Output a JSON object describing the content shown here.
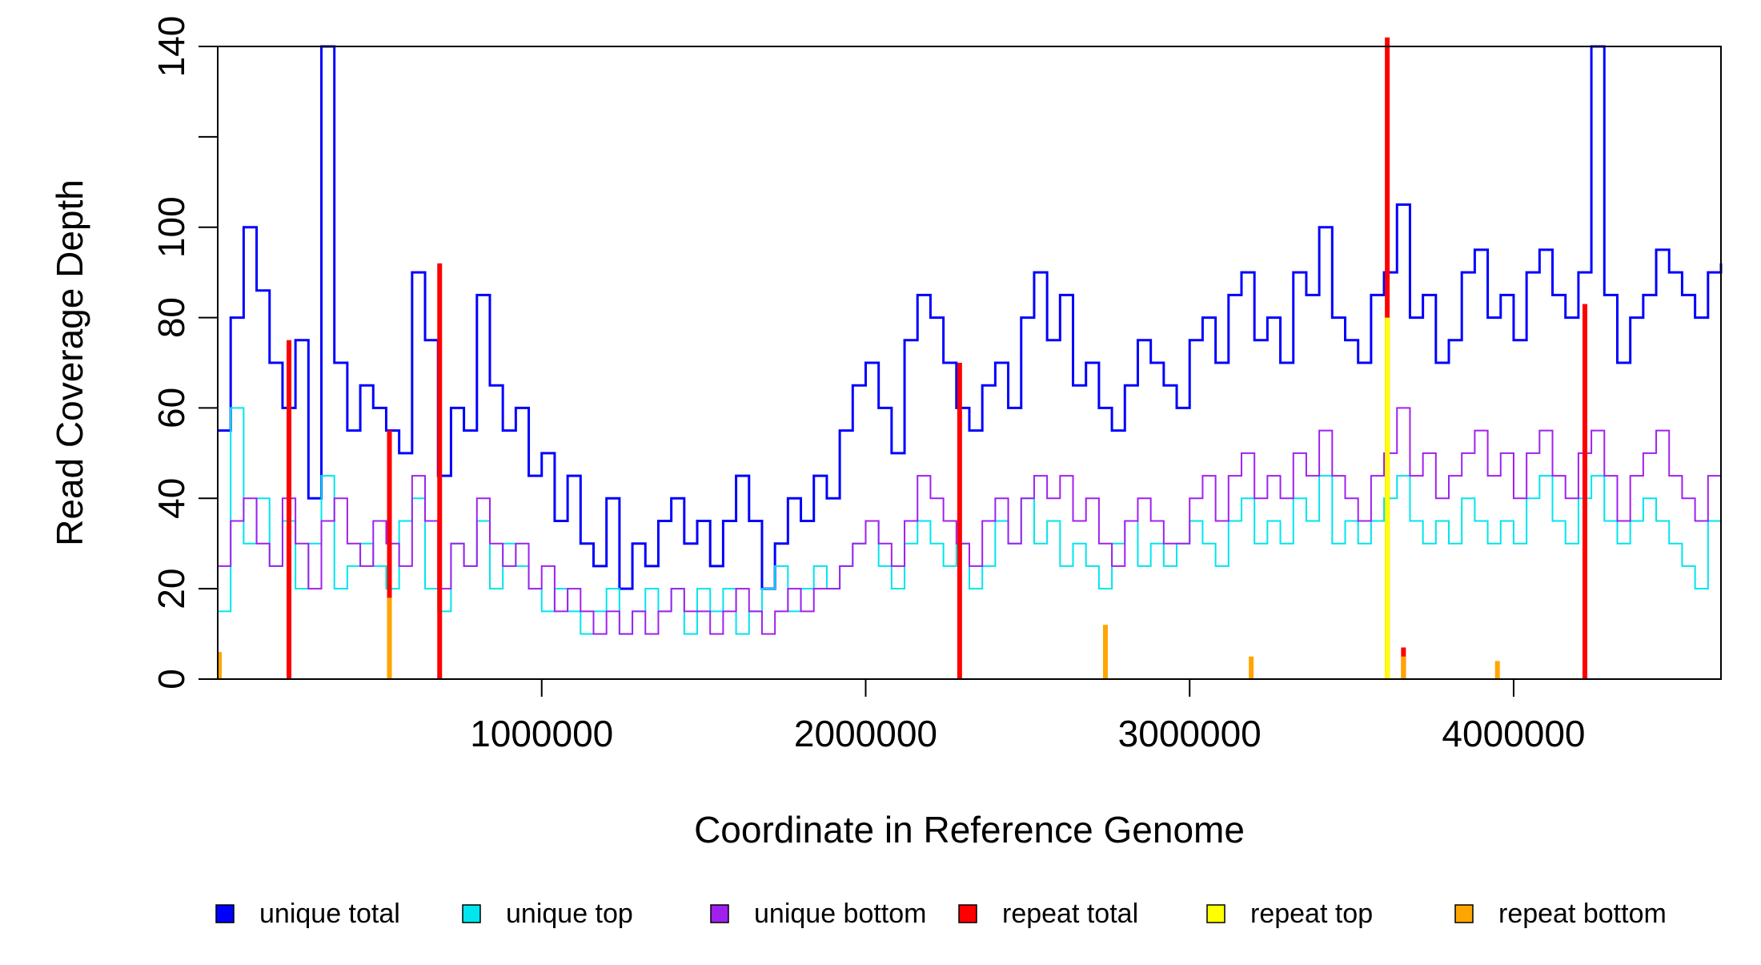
{
  "chart_data": {
    "type": "line",
    "chart_style": "step",
    "title": "",
    "xlabel": "Coordinate in Reference Genome",
    "ylabel": "Read Coverage Depth",
    "xlim": [
      1,
      4640000
    ],
    "ylim": [
      0,
      140
    ],
    "x_ticks": [
      1000000,
      2000000,
      3000000,
      4000000
    ],
    "x_tick_labels": [
      "1000000",
      "2000000",
      "3000000",
      "4000000"
    ],
    "y_ticks": [
      0,
      20,
      40,
      60,
      80,
      100,
      120,
      140
    ],
    "y_tick_labels": [
      "0",
      "20",
      "40",
      "60",
      "80",
      "100",
      "",
      "140"
    ],
    "grid": false,
    "legend_placement": "bottom",
    "legend": [
      {
        "label": "unique total",
        "color": "#0000ff"
      },
      {
        "label": "unique top",
        "color": "#00e5ee"
      },
      {
        "label": "unique bottom",
        "color": "#a020f0"
      },
      {
        "label": "repeat total",
        "color": "#ff0000"
      },
      {
        "label": "repeat top",
        "color": "#ffff00"
      },
      {
        "label": "repeat bottom",
        "color": "#ffa500"
      }
    ],
    "series": [
      {
        "name": "unique total",
        "color": "#0000ff",
        "x": [
          1,
          40000,
          80000,
          120000,
          160000,
          200000,
          240000,
          280000,
          320000,
          360000,
          400000,
          440000,
          480000,
          520000,
          560000,
          600000,
          640000,
          680000,
          720000,
          760000,
          800000,
          840000,
          880000,
          920000,
          960000,
          1000000,
          1040000,
          1080000,
          1120000,
          1160000,
          1200000,
          1240000,
          1280000,
          1320000,
          1360000,
          1400000,
          1440000,
          1480000,
          1520000,
          1560000,
          1600000,
          1640000,
          1680000,
          1720000,
          1760000,
          1800000,
          1840000,
          1880000,
          1920000,
          1960000,
          2000000,
          2040000,
          2080000,
          2120000,
          2160000,
          2200000,
          2240000,
          2280000,
          2320000,
          2360000,
          2400000,
          2440000,
          2480000,
          2520000,
          2560000,
          2600000,
          2640000,
          2680000,
          2720000,
          2760000,
          2800000,
          2840000,
          2880000,
          2920000,
          2960000,
          3000000,
          3040000,
          3080000,
          3120000,
          3160000,
          3200000,
          3240000,
          3280000,
          3320000,
          3360000,
          3400000,
          3440000,
          3480000,
          3520000,
          3560000,
          3600000,
          3640000,
          3680000,
          3720000,
          3760000,
          3800000,
          3840000,
          3880000,
          3920000,
          3960000,
          4000000,
          4040000,
          4080000,
          4120000,
          4160000,
          4200000,
          4240000,
          4280000,
          4320000,
          4360000,
          4400000,
          4440000,
          4480000,
          4520000,
          4560000,
          4600000,
          4640000
        ],
        "values": [
          55,
          80,
          100,
          86,
          70,
          60,
          75,
          40,
          140,
          70,
          55,
          65,
          60,
          55,
          50,
          90,
          75,
          45,
          60,
          55,
          85,
          65,
          55,
          60,
          45,
          50,
          35,
          45,
          30,
          25,
          40,
          20,
          30,
          25,
          35,
          40,
          30,
          35,
          25,
          35,
          45,
          35,
          20,
          30,
          40,
          35,
          45,
          40,
          55,
          65,
          70,
          60,
          50,
          75,
          85,
          80,
          70,
          60,
          55,
          65,
          70,
          60,
          80,
          90,
          75,
          85,
          65,
          70,
          60,
          55,
          65,
          75,
          70,
          65,
          60,
          75,
          80,
          70,
          85,
          90,
          75,
          80,
          70,
          90,
          85,
          100,
          80,
          75,
          70,
          85,
          90,
          105,
          80,
          85,
          70,
          75,
          90,
          95,
          80,
          85,
          75,
          90,
          95,
          85,
          80,
          90,
          140,
          85,
          70,
          80,
          85,
          95,
          90,
          85,
          80,
          90,
          92
        ]
      },
      {
        "name": "unique top",
        "color": "#00e5ee",
        "x": [
          1,
          40000,
          80000,
          120000,
          160000,
          200000,
          240000,
          280000,
          320000,
          360000,
          400000,
          440000,
          480000,
          520000,
          560000,
          600000,
          640000,
          680000,
          720000,
          760000,
          800000,
          840000,
          880000,
          920000,
          960000,
          1000000,
          1040000,
          1080000,
          1120000,
          1160000,
          1200000,
          1240000,
          1280000,
          1320000,
          1360000,
          1400000,
          1440000,
          1480000,
          1520000,
          1560000,
          1600000,
          1640000,
          1680000,
          1720000,
          1760000,
          1800000,
          1840000,
          1880000,
          1920000,
          1960000,
          2000000,
          2040000,
          2080000,
          2120000,
          2160000,
          2200000,
          2240000,
          2280000,
          2320000,
          2360000,
          2400000,
          2440000,
          2480000,
          2520000,
          2560000,
          2600000,
          2640000,
          2680000,
          2720000,
          2760000,
          2800000,
          2840000,
          2880000,
          2920000,
          2960000,
          3000000,
          3040000,
          3080000,
          3120000,
          3160000,
          3200000,
          3240000,
          3280000,
          3320000,
          3360000,
          3400000,
          3440000,
          3480000,
          3520000,
          3560000,
          3600000,
          3640000,
          3680000,
          3720000,
          3760000,
          3800000,
          3840000,
          3880000,
          3920000,
          3960000,
          4000000,
          4040000,
          4080000,
          4120000,
          4160000,
          4200000,
          4240000,
          4280000,
          4320000,
          4360000,
          4400000,
          4440000,
          4480000,
          4520000,
          4560000,
          4600000,
          4640000
        ],
        "values": [
          15,
          60,
          30,
          40,
          25,
          35,
          20,
          30,
          45,
          20,
          25,
          30,
          25,
          20,
          35,
          40,
          20,
          15,
          30,
          25,
          35,
          20,
          30,
          25,
          20,
          15,
          20,
          15,
          10,
          15,
          20,
          10,
          15,
          20,
          15,
          20,
          10,
          20,
          15,
          20,
          10,
          15,
          20,
          25,
          15,
          20,
          25,
          20,
          25,
          30,
          35,
          25,
          20,
          30,
          35,
          30,
          25,
          30,
          20,
          25,
          35,
          30,
          40,
          30,
          35,
          25,
          30,
          25,
          20,
          30,
          35,
          25,
          30,
          25,
          30,
          35,
          30,
          25,
          35,
          40,
          30,
          35,
          30,
          40,
          35,
          45,
          30,
          35,
          30,
          35,
          40,
          45,
          35,
          30,
          35,
          30,
          40,
          35,
          30,
          35,
          30,
          40,
          45,
          35,
          30,
          40,
          45,
          35,
          30,
          35,
          40,
          35,
          30,
          25,
          20,
          35,
          40
        ]
      },
      {
        "name": "unique bottom",
        "color": "#a020f0",
        "x": [
          1,
          40000,
          80000,
          120000,
          160000,
          200000,
          240000,
          280000,
          320000,
          360000,
          400000,
          440000,
          480000,
          520000,
          560000,
          600000,
          640000,
          680000,
          720000,
          760000,
          800000,
          840000,
          880000,
          920000,
          960000,
          1000000,
          1040000,
          1080000,
          1120000,
          1160000,
          1200000,
          1240000,
          1280000,
          1320000,
          1360000,
          1400000,
          1440000,
          1480000,
          1520000,
          1560000,
          1600000,
          1640000,
          1680000,
          1720000,
          1760000,
          1800000,
          1840000,
          1880000,
          1920000,
          1960000,
          2000000,
          2040000,
          2080000,
          2120000,
          2160000,
          2200000,
          2240000,
          2280000,
          2320000,
          2360000,
          2400000,
          2440000,
          2480000,
          2520000,
          2560000,
          2600000,
          2640000,
          2680000,
          2720000,
          2760000,
          2800000,
          2840000,
          2880000,
          2920000,
          2960000,
          3000000,
          3040000,
          3080000,
          3120000,
          3160000,
          3200000,
          3240000,
          3280000,
          3320000,
          3360000,
          3400000,
          3440000,
          3480000,
          3520000,
          3560000,
          3600000,
          3640000,
          3680000,
          3720000,
          3760000,
          3800000,
          3840000,
          3880000,
          3920000,
          3960000,
          4000000,
          4040000,
          4080000,
          4120000,
          4160000,
          4200000,
          4240000,
          4280000,
          4320000,
          4360000,
          4400000,
          4440000,
          4480000,
          4520000,
          4560000,
          4600000,
          4640000
        ],
        "values": [
          25,
          35,
          40,
          30,
          25,
          40,
          30,
          20,
          35,
          40,
          30,
          25,
          35,
          30,
          25,
          45,
          35,
          20,
          30,
          25,
          40,
          30,
          25,
          30,
          20,
          25,
          15,
          20,
          15,
          10,
          15,
          10,
          15,
          10,
          15,
          20,
          15,
          15,
          10,
          15,
          20,
          15,
          10,
          15,
          20,
          15,
          20,
          20,
          25,
          30,
          35,
          30,
          25,
          35,
          45,
          40,
          35,
          30,
          25,
          35,
          40,
          30,
          40,
          45,
          40,
          45,
          35,
          40,
          30,
          25,
          35,
          40,
          35,
          30,
          30,
          40,
          45,
          35,
          45,
          50,
          40,
          45,
          40,
          50,
          45,
          55,
          45,
          40,
          35,
          45,
          50,
          60,
          45,
          50,
          40,
          45,
          50,
          55,
          45,
          50,
          40,
          50,
          55,
          45,
          40,
          50,
          55,
          45,
          35,
          45,
          50,
          55,
          45,
          40,
          35,
          45,
          40
        ]
      },
      {
        "name": "repeat total",
        "color": "#ff0000",
        "x": [
          220000,
          530000,
          685000,
          2290000,
          3610000,
          3660000,
          4220000
        ],
        "values": [
          75,
          55,
          92,
          70,
          142,
          7,
          83
        ]
      },
      {
        "name": "repeat top",
        "color": "#ffff00",
        "x": [
          3610000
        ],
        "values": [
          80
        ]
      },
      {
        "name": "repeat bottom",
        "color": "#ffa500",
        "x": [
          5000,
          530000,
          2740000,
          3190000,
          3660000,
          3950000
        ],
        "values": [
          6,
          18,
          12,
          5,
          5,
          4
        ]
      }
    ]
  }
}
